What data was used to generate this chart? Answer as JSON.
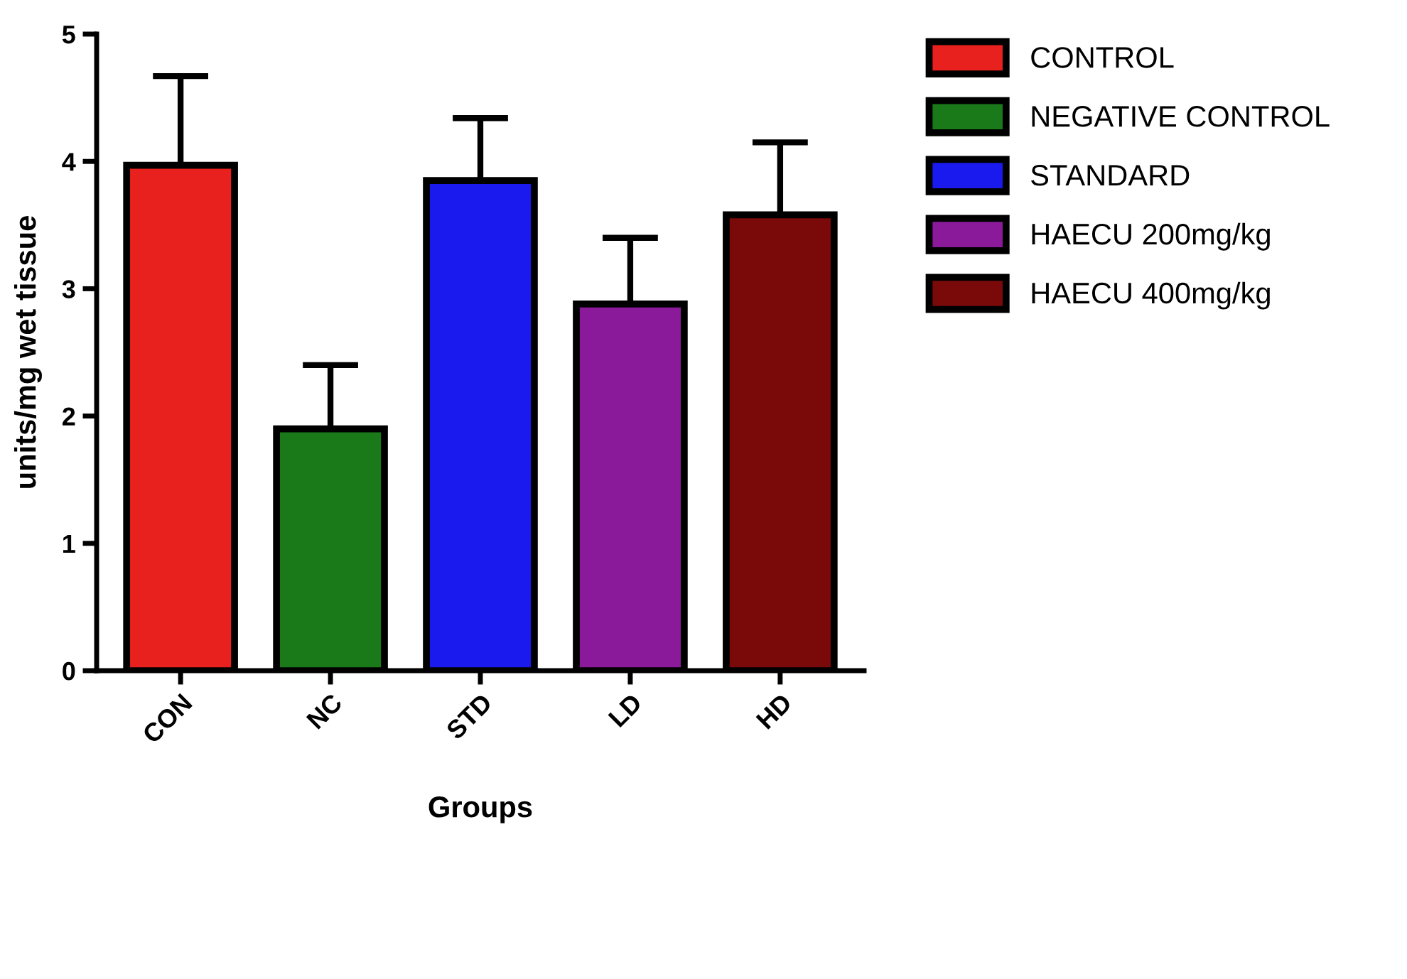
{
  "chart_data": {
    "type": "bar",
    "xlabel": "Groups",
    "ylabel": "units/mg wet tissue",
    "categories": [
      "CON",
      "NC",
      "STD",
      "LD",
      "HD"
    ],
    "series": [
      {
        "name": "CONTROL",
        "color": "#e8201e",
        "values": [
          3.97,
          null,
          null,
          null,
          null
        ],
        "errors": [
          [
            3.97,
            4.67
          ],
          null,
          null,
          null,
          null
        ]
      },
      {
        "name": "NEGATIVE CONTROL",
        "color": "#1a7a1a",
        "values": [
          null,
          1.9,
          null,
          null,
          null
        ],
        "errors": [
          null,
          [
            1.9,
            2.4
          ],
          null,
          null,
          null
        ]
      },
      {
        "name": "STANDARD",
        "color": "#1a1aee",
        "values": [
          null,
          null,
          3.85,
          null,
          null
        ],
        "errors": [
          null,
          null,
          [
            3.85,
            4.34
          ],
          null,
          null
        ]
      },
      {
        "name": "HAECU 200mg/kg",
        "color": "#8a1a9a",
        "values": [
          null,
          null,
          null,
          2.88,
          null
        ],
        "errors": [
          null,
          null,
          null,
          [
            2.88,
            3.4
          ],
          null
        ]
      },
      {
        "name": "HAECU 400mg/kg",
        "color": "#7a0a0a",
        "values": [
          null,
          null,
          null,
          null,
          3.58
        ],
        "errors": [
          null,
          null,
          null,
          null,
          [
            3.58,
            4.15
          ]
        ]
      }
    ],
    "ylim": [
      0,
      5
    ],
    "yticks": [
      0,
      1,
      2,
      3,
      4,
      5
    ],
    "grid": false,
    "legend": "top right"
  }
}
